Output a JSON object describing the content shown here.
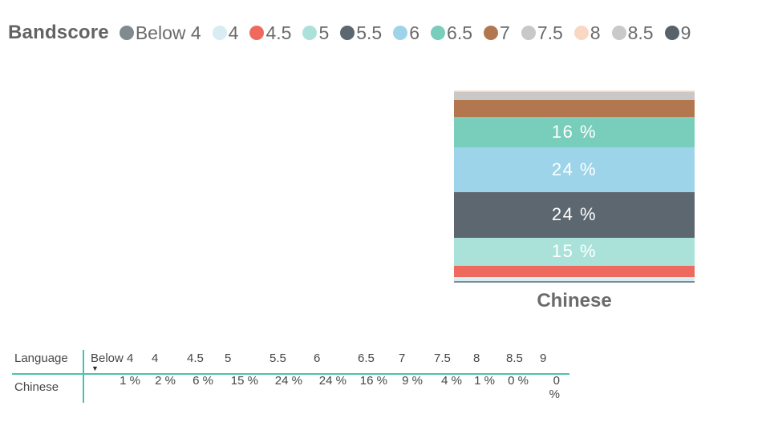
{
  "legend": {
    "title": "Bandscore",
    "items": [
      {
        "label": "Below 4",
        "color": "#7f8a91"
      },
      {
        "label": "4",
        "color": "#d8ecf3"
      },
      {
        "label": "4.5",
        "color": "#ee6a5f"
      },
      {
        "label": "5",
        "color": "#aae2d9"
      },
      {
        "label": "5.5",
        "color": "#5d6770"
      },
      {
        "label": "6",
        "color": "#9dd4e9"
      },
      {
        "label": "6.5",
        "color": "#79cdbb"
      },
      {
        "label": "7",
        "color": "#b3774f"
      },
      {
        "label": "7.5",
        "color": "#cac8c7"
      },
      {
        "label": "8",
        "color": "#f8d8c3"
      },
      {
        "label": "8.5",
        "color": "#c9c9c9"
      },
      {
        "label": "9",
        "color": "#57626b"
      }
    ]
  },
  "chart_data": {
    "type": "bar",
    "subtype": "100-percent-stacked-column",
    "categories": [
      "Chinese"
    ],
    "series": [
      {
        "name": "Below 4",
        "values": [
          1
        ],
        "color": "#7f8a91",
        "data_label": ""
      },
      {
        "name": "4",
        "values": [
          2
        ],
        "color": "#d8ecf3",
        "data_label": ""
      },
      {
        "name": "4.5",
        "values": [
          6
        ],
        "color": "#ee6a5f",
        "data_label": ""
      },
      {
        "name": "5",
        "values": [
          15
        ],
        "color": "#aae2d9",
        "data_label": "15 %"
      },
      {
        "name": "5.5",
        "values": [
          24
        ],
        "color": "#5d6770",
        "data_label": "24 %"
      },
      {
        "name": "6",
        "values": [
          24
        ],
        "color": "#9dd4e9",
        "data_label": "24 %"
      },
      {
        "name": "6.5",
        "values": [
          16
        ],
        "color": "#79cdbb",
        "data_label": "16 %"
      },
      {
        "name": "7",
        "values": [
          9
        ],
        "color": "#b3774f",
        "data_label": ""
      },
      {
        "name": "7.5",
        "values": [
          4
        ],
        "color": "#cac8c7",
        "data_label": ""
      },
      {
        "name": "8",
        "values": [
          1
        ],
        "color": "#f8d8c3",
        "data_label": ""
      },
      {
        "name": "8.5",
        "values": [
          0
        ],
        "color": "#c9c9c9",
        "data_label": ""
      },
      {
        "name": "9",
        "values": [
          0
        ],
        "color": "#57626b",
        "data_label": ""
      }
    ],
    "stack_order_bottom_to_top": [
      "Below 4",
      "4",
      "4.5",
      "5",
      "5.5",
      "6",
      "6.5",
      "7",
      "7.5",
      "8",
      "8.5",
      "9"
    ],
    "legend_title": "Bandscore",
    "legend_position": "top",
    "value_format": "percent",
    "ylim": [
      0,
      100
    ],
    "grid": false,
    "xlabel": "",
    "ylabel": ""
  },
  "table": {
    "columns": [
      "Language",
      "Below 4",
      "4",
      "4.5",
      "5",
      "5.5",
      "6",
      "6.5",
      "7",
      "7.5",
      "8",
      "8.5",
      "9"
    ],
    "sorted_by": "Below 4",
    "sort_icon": "▼",
    "rows": [
      {
        "cells": [
          "Chinese",
          "1 %",
          "2 %",
          "6 %",
          "15 %",
          "24 %",
          "24 %",
          "16 %",
          "9 %",
          "4 %",
          "1 %",
          "0 %",
          "0 %"
        ]
      }
    ]
  },
  "colors": {
    "accent_teal": "#4cc2ae",
    "legend_text": "#6a6a6a",
    "bar_label_text": "#ffffff",
    "table_text": "#474747"
  }
}
